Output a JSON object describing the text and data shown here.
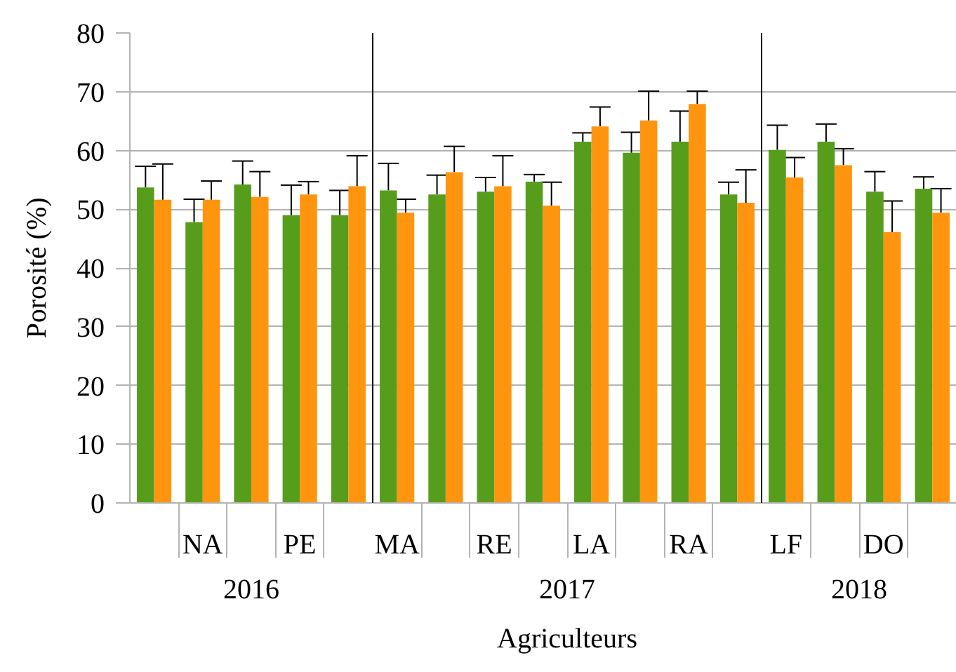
{
  "chart_data": [
    {
      "type": "bar",
      "categories": [
        null,
        "NA",
        null,
        "PE",
        null
      ],
      "xlabel": "2016",
      "ylabel": "Porosité (%)",
      "ylim": [
        0,
        80
      ],
      "yticks": [
        0,
        10,
        20,
        30,
        40,
        50,
        60,
        70,
        80
      ],
      "grid": "y",
      "series": [
        {
          "color": "#579d1c",
          "values": [
            53.7,
            47.8,
            54.2,
            49.0,
            49.0
          ],
          "errors": [
            [
              53.7,
              57.3
            ],
            [
              47.8,
              51.7
            ],
            [
              54.2,
              58.2
            ],
            [
              49.0,
              54.1
            ],
            [
              49.0,
              53.2
            ]
          ]
        },
        {
          "color": "#ff950e",
          "values": [
            51.6,
            51.6,
            52.1,
            52.5,
            53.9
          ],
          "errors": [
            [
              51.6,
              57.7
            ],
            [
              51.6,
              54.8
            ],
            [
              52.1,
              56.4
            ],
            [
              52.5,
              54.7
            ],
            [
              53.9,
              59.1
            ]
          ]
        }
      ]
    },
    {
      "type": "bar",
      "categories": [
        "MA",
        null,
        "RE",
        null,
        "LA",
        null,
        "RA",
        null
      ],
      "xlabel": "2017",
      "annotations": [
        "Agriculteurs"
      ],
      "ylim": [
        0,
        80
      ],
      "yticks": [
        0,
        10,
        20,
        30,
        40,
        50,
        60,
        70,
        80
      ],
      "grid": "y",
      "tick_labels": "x",
      "series": [
        {
          "color": "#579d1c",
          "values": [
            53.2,
            52.5,
            53.0,
            54.7,
            61.5,
            59.6,
            61.5,
            52.5
          ],
          "errors": [
            [
              53.2,
              57.8
            ],
            [
              52.5,
              55.8
            ],
            [
              53.0,
              55.4
            ],
            [
              54.7,
              55.9
            ],
            [
              61.5,
              63.0
            ],
            [
              59.6,
              63.1
            ],
            [
              61.5,
              66.7
            ],
            [
              52.5,
              54.6
            ]
          ]
        },
        {
          "color": "#ff950e",
          "values": [
            49.4,
            56.3,
            53.9,
            50.6,
            64.1,
            65.1,
            67.9,
            51.1
          ],
          "errors": [
            [
              49.4,
              51.7
            ],
            [
              56.3,
              60.7
            ],
            [
              53.9,
              59.1
            ],
            [
              50.6,
              54.6
            ],
            [
              64.1,
              67.4
            ],
            [
              65.1,
              70.1
            ],
            [
              67.9,
              70.1
            ],
            [
              51.1,
              56.7
            ]
          ]
        }
      ]
    },
    {
      "type": "bar",
      "categories": [
        "LF",
        null,
        "DO",
        null
      ],
      "xlabel": "2018",
      "ylim": [
        0,
        80
      ],
      "yticks": [
        0,
        10,
        20,
        30,
        40,
        50,
        60,
        70,
        80
      ],
      "grid": "y",
      "tick_labels": "x",
      "series": [
        {
          "color": "#579d1c",
          "values": [
            60.1,
            61.5,
            53.0,
            53.5
          ],
          "errors": [
            [
              60.1,
              64.3
            ],
            [
              61.5,
              64.5
            ],
            [
              53.0,
              56.4
            ],
            [
              53.5,
              55.5
            ]
          ]
        },
        {
          "color": "#ff950e",
          "values": [
            55.4,
            57.5,
            46.1,
            49.4
          ],
          "errors": [
            [
              55.4,
              58.8
            ],
            [
              57.5,
              60.3
            ],
            [
              46.1,
              51.4
            ],
            [
              49.4,
              53.5
            ]
          ]
        }
      ]
    }
  ]
}
